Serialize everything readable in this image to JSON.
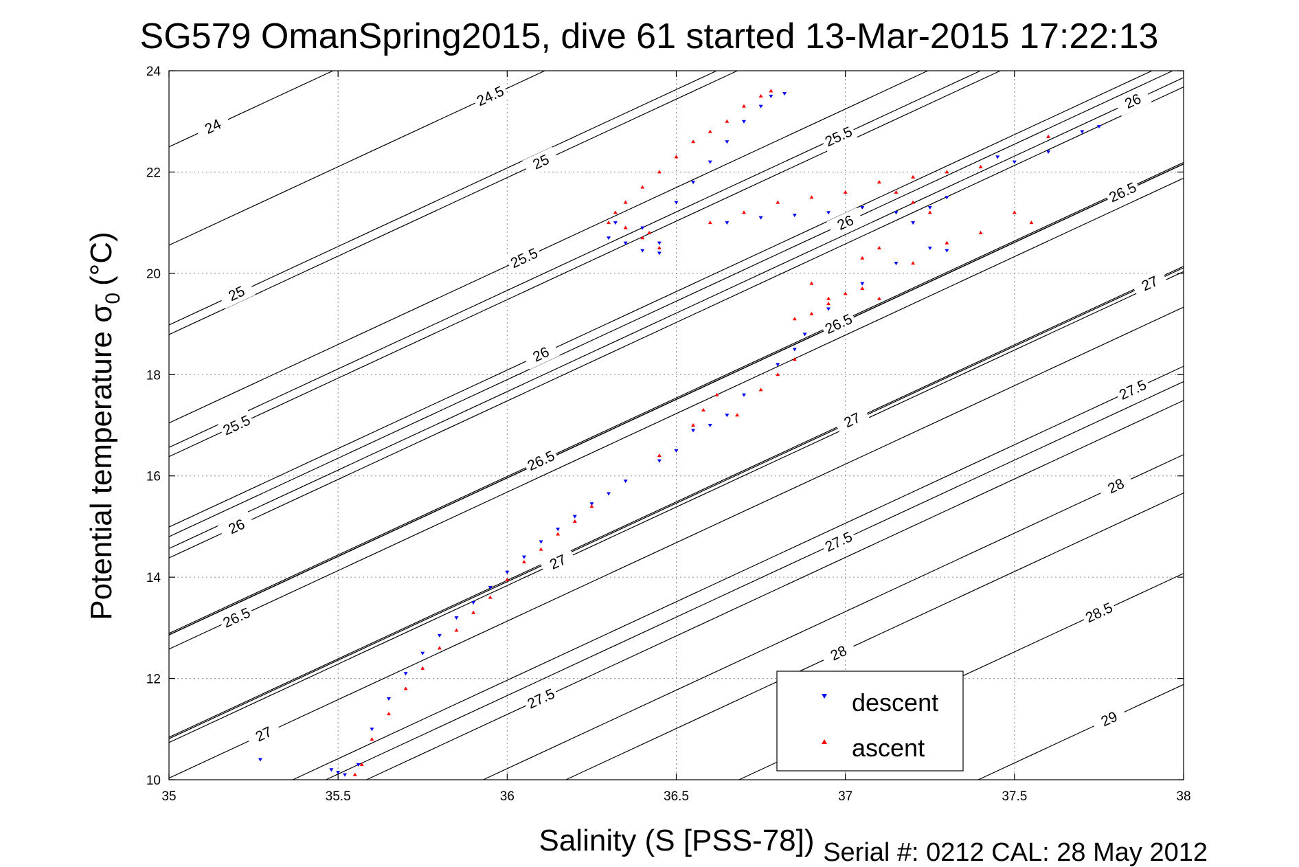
{
  "chart_data": {
    "type": "scatter",
    "title": "SG579 OmanSpring2015, dive 61 started 13-Mar-2015 17:22:13",
    "xlabel": "Salinity (S [PSS-78])",
    "ylabel_main": "Potential temperature σ",
    "ylabel_sub": "0",
    "ylabel_unit": "(°C)",
    "footer": "Serial #: 0212  CAL: 28 May 2012",
    "xlim": [
      35,
      38
    ],
    "ylim": [
      10,
      24
    ],
    "x_ticks": [
      35,
      35.5,
      36,
      36.5,
      37,
      37.5,
      38
    ],
    "x_tick_labels": [
      "35",
      "35.5",
      "36",
      "36.5",
      "37",
      "37.5",
      "38"
    ],
    "y_ticks": [
      10,
      12,
      14,
      16,
      18,
      20,
      22,
      24
    ],
    "y_tick_labels": [
      "10",
      "12",
      "14",
      "16",
      "18",
      "20",
      "22",
      "24"
    ],
    "grid": true,
    "legend_position": "bottom-right",
    "density_contours": [
      {
        "label": "24",
        "label_at": [
          35.13,
          22.9
        ]
      },
      {
        "label": "24.5",
        "label_at": [
          35.95,
          23.5
        ]
      },
      {
        "label": "25",
        "label_at": [
          35.2,
          19.6
        ]
      },
      {
        "label": "25",
        "label_at": [
          36.1,
          22.2
        ]
      },
      {
        "label": "25.5",
        "label_at": [
          35.2,
          17.0
        ]
      },
      {
        "label": "25.5",
        "label_at": [
          36.05,
          20.3
        ]
      },
      {
        "label": "25.5",
        "label_at": [
          36.98,
          22.7
        ]
      },
      {
        "label": "26",
        "label_at": [
          35.2,
          15.0
        ]
      },
      {
        "label": "26",
        "label_at": [
          36.1,
          18.4
        ]
      },
      {
        "label": "26",
        "label_at": [
          37.0,
          21.0
        ]
      },
      {
        "label": "26",
        "label_at": [
          37.85,
          23.4
        ]
      },
      {
        "label": "26.5",
        "label_at": [
          35.2,
          13.2
        ]
      },
      {
        "label": "26.5",
        "label_at": [
          36.1,
          16.3
        ]
      },
      {
        "label": "26.5",
        "label_at": [
          36.98,
          19.0
        ]
      },
      {
        "label": "26.5",
        "label_at": [
          37.82,
          21.6
        ]
      },
      {
        "label": "27",
        "label_at": [
          35.28,
          10.9
        ]
      },
      {
        "label": "27",
        "label_at": [
          36.15,
          14.3
        ]
      },
      {
        "label": "27",
        "label_at": [
          37.02,
          17.1
        ]
      },
      {
        "label": "27",
        "label_at": [
          37.9,
          19.8
        ]
      },
      {
        "label": "27.5",
        "label_at": [
          36.1,
          11.6
        ]
      },
      {
        "label": "27.5",
        "label_at": [
          36.98,
          14.7
        ]
      },
      {
        "label": "27.5",
        "label_at": [
          37.85,
          17.7
        ]
      },
      {
        "label": "28",
        "label_at": [
          36.98,
          12.5
        ]
      },
      {
        "label": "28",
        "label_at": [
          37.8,
          15.8
        ]
      },
      {
        "label": "28.5",
        "label_at": [
          37.75,
          13.3
        ]
      },
      {
        "label": "29",
        "label_at": [
          37.78,
          11.2
        ]
      }
    ],
    "series": [
      {
        "name": "descent",
        "color": "#0000ff",
        "marker": "triangle-down",
        "x": [
          35.27,
          35.48,
          35.5,
          35.52,
          35.56,
          35.6,
          35.65,
          35.7,
          35.75,
          35.8,
          35.85,
          35.9,
          35.95,
          36.0,
          36.05,
          36.1,
          36.15,
          36.2,
          36.25,
          36.3,
          36.35,
          36.45,
          36.5,
          36.55,
          36.6,
          36.65,
          36.7,
          36.8,
          36.85,
          36.88,
          36.95,
          37.05,
          37.15,
          37.25,
          37.3,
          37.2,
          37.15,
          37.25,
          37.3,
          37.45,
          37.5,
          37.6,
          37.7,
          37.75,
          36.3,
          36.32,
          36.4,
          36.45,
          36.35,
          36.4,
          36.45,
          36.5,
          36.55,
          36.6,
          36.65,
          36.7,
          36.75,
          36.78,
          36.82,
          36.65,
          36.75,
          36.85,
          36.95,
          37.05
        ],
        "y": [
          10.4,
          10.2,
          10.15,
          10.1,
          10.3,
          11.0,
          11.6,
          12.1,
          12.5,
          12.85,
          13.2,
          13.5,
          13.8,
          14.1,
          14.4,
          14.7,
          14.95,
          15.2,
          15.45,
          15.65,
          15.9,
          16.3,
          16.5,
          16.9,
          17.0,
          17.2,
          17.6,
          18.2,
          18.5,
          18.8,
          19.3,
          19.8,
          20.2,
          20.5,
          20.45,
          21.0,
          21.2,
          21.3,
          21.5,
          22.3,
          22.2,
          22.4,
          22.8,
          22.9,
          20.7,
          21.0,
          20.9,
          20.6,
          20.6,
          20.45,
          20.4,
          21.4,
          21.8,
          22.2,
          22.6,
          23.0,
          23.3,
          23.5,
          23.55,
          21.0,
          21.1,
          21.15,
          21.2,
          21.3
        ],
        "range_note": ""
      },
      {
        "name": "ascent",
        "color": "#ff0000",
        "marker": "triangle-up",
        "x": [
          35.55,
          35.57,
          35.6,
          35.65,
          35.7,
          35.75,
          35.8,
          35.85,
          35.9,
          35.95,
          36.0,
          36.05,
          36.1,
          36.15,
          36.2,
          36.25,
          36.45,
          36.55,
          36.58,
          36.62,
          36.68,
          36.75,
          36.8,
          36.85,
          36.9,
          36.95,
          37.0,
          37.05,
          37.1,
          37.2,
          37.3,
          37.4,
          37.5,
          37.55,
          37.6,
          37.2,
          37.25,
          37.15,
          37.05,
          37.1,
          36.85,
          36.9,
          36.95,
          36.6,
          36.7,
          36.8,
          36.9,
          37.0,
          37.1,
          37.2,
          37.3,
          37.4,
          36.3,
          36.32,
          36.35,
          36.4,
          36.42,
          36.45,
          36.35,
          36.4,
          36.45,
          36.5,
          36.55,
          36.6,
          36.65,
          36.7,
          36.75,
          36.78
        ],
        "y": [
          10.1,
          10.3,
          10.8,
          11.3,
          11.8,
          12.2,
          12.6,
          12.95,
          13.3,
          13.6,
          13.95,
          14.3,
          14.55,
          14.85,
          15.1,
          15.4,
          16.4,
          17.0,
          17.3,
          17.6,
          17.2,
          17.7,
          18.0,
          18.3,
          19.2,
          19.4,
          19.6,
          19.7,
          19.5,
          20.2,
          20.6,
          20.8,
          21.2,
          21.0,
          22.7,
          21.4,
          21.2,
          21.6,
          20.3,
          20.5,
          19.1,
          19.8,
          19.5,
          21.0,
          21.2,
          21.4,
          21.5,
          21.6,
          21.8,
          21.9,
          22.0,
          22.1,
          21.0,
          21.2,
          20.9,
          20.7,
          20.8,
          20.5,
          21.4,
          21.7,
          22.0,
          22.3,
          22.6,
          22.8,
          23.0,
          23.3,
          23.5,
          23.6
        ],
        "range_note": ""
      }
    ]
  }
}
